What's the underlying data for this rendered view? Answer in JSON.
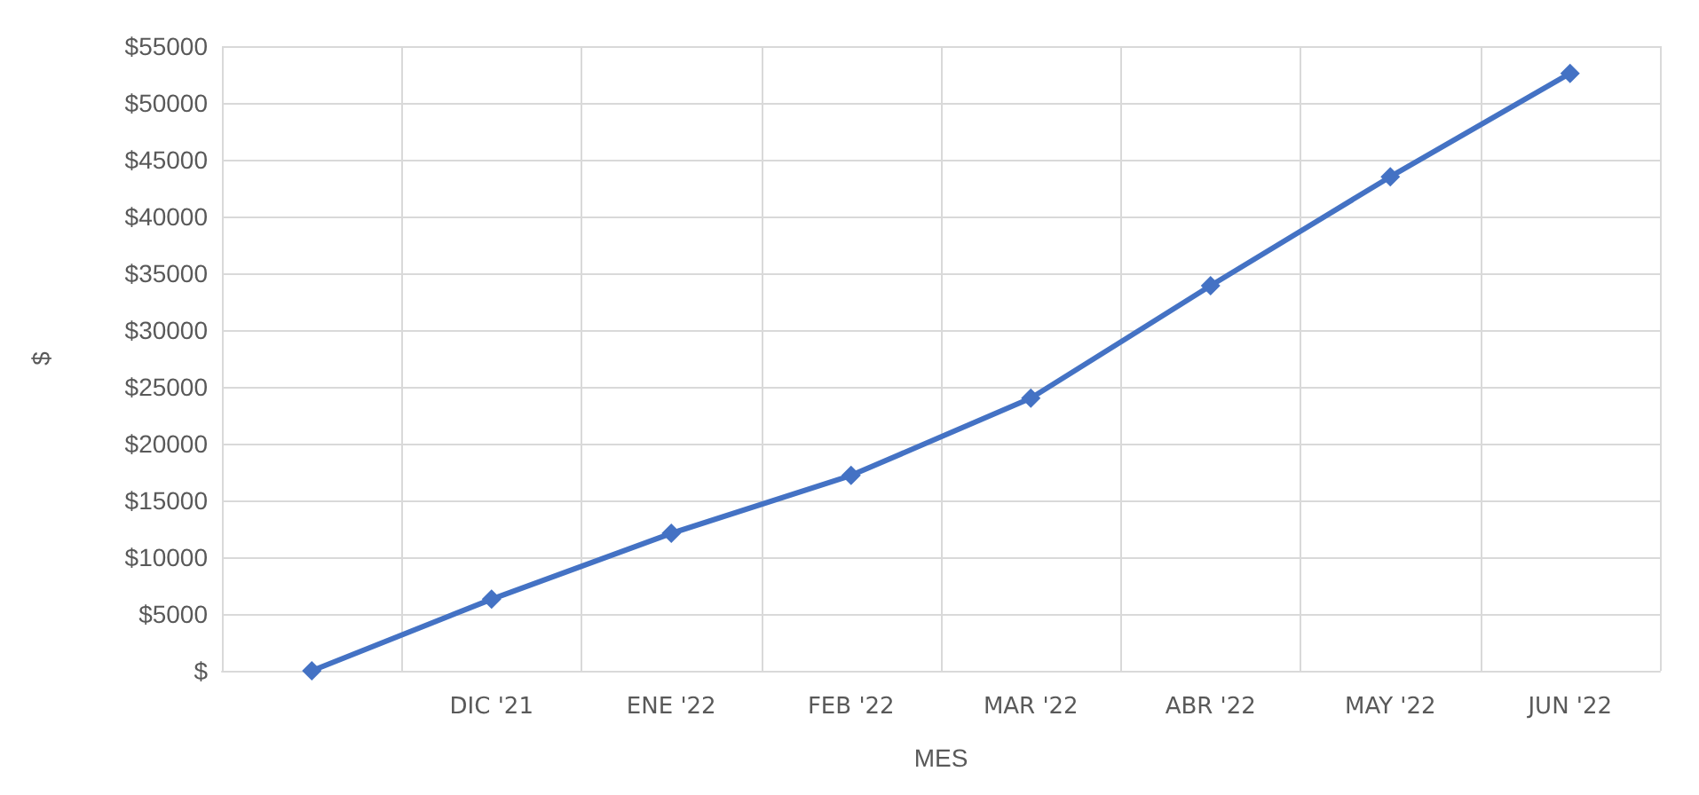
{
  "chart_data": {
    "type": "line",
    "xlabel": "MES",
    "ylabel": "$",
    "categories": [
      null,
      "DIC '21",
      "ENE '22",
      "FEB '22",
      "MAR '22",
      "ABR '22",
      "MAY '22",
      "JUN '22"
    ],
    "series": [
      {
        "color": "#4472c4",
        "values": [
          0,
          6300,
          12100,
          17200,
          24000,
          33900,
          43500,
          52600
        ]
      }
    ],
    "ylim": [
      0,
      55000
    ],
    "yticks": [
      {
        "value": 0,
        "label": "$"
      },
      {
        "value": 5000,
        "label": "$5000"
      },
      {
        "value": 10000,
        "label": "$10000"
      },
      {
        "value": 15000,
        "label": "$15000"
      },
      {
        "value": 20000,
        "label": "$20000"
      },
      {
        "value": 25000,
        "label": "$25000"
      },
      {
        "value": 30000,
        "label": "$30000"
      },
      {
        "value": 35000,
        "label": "$35000"
      },
      {
        "value": 40000,
        "label": "$40000"
      },
      {
        "value": 45000,
        "label": "$45000"
      },
      {
        "value": 50000,
        "label": "$50000"
      },
      {
        "value": 55000,
        "label": "$55000"
      }
    ],
    "grid": true,
    "marker": "diamond",
    "line_style": "solid"
  }
}
